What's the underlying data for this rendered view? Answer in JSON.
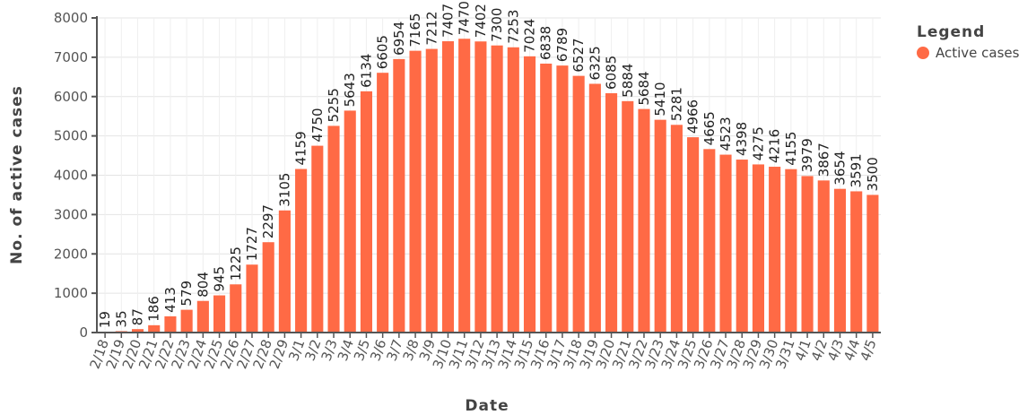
{
  "chart_data": {
    "type": "bar",
    "xlabel": "Date",
    "ylabel": "No. of active cases",
    "ylim": [
      0,
      8000
    ],
    "yticks": [
      0,
      1000,
      2000,
      3000,
      4000,
      5000,
      6000,
      7000,
      8000
    ],
    "grid": true,
    "legend_position": "top-right",
    "legend_title": "Legend",
    "categories": [
      "2/18",
      "2/19",
      "2/20",
      "2/21",
      "2/22",
      "2/23",
      "2/24",
      "2/25",
      "2/26",
      "2/27",
      "2/28",
      "2/29",
      "3/1",
      "3/2",
      "3/3",
      "3/4",
      "3/5",
      "3/6",
      "3/7",
      "3/8",
      "3/9",
      "3/10",
      "3/11",
      "3/12",
      "3/13",
      "3/14",
      "3/15",
      "3/16",
      "3/17",
      "3/18",
      "3/19",
      "3/20",
      "3/21",
      "3/22",
      "3/23",
      "3/24",
      "3/25",
      "3/26",
      "3/27",
      "3/28",
      "3/29",
      "3/30",
      "3/31",
      "4/1",
      "4/2",
      "4/3",
      "4/4",
      "4/5"
    ],
    "series": [
      {
        "name": "Active cases",
        "color": "#ff6a45",
        "values": [
          19,
          35,
          87,
          186,
          413,
          579,
          804,
          945,
          1225,
          1727,
          2297,
          3105,
          4159,
          4750,
          5255,
          5643,
          6134,
          6605,
          6954,
          7165,
          7212,
          7407,
          7470,
          7402,
          7300,
          7253,
          7024,
          6838,
          6789,
          6527,
          6325,
          6085,
          5884,
          5684,
          5410,
          5281,
          4966,
          4665,
          4523,
          4398,
          4275,
          4216,
          4155,
          3979,
          3867,
          3654,
          3591,
          3500
        ]
      }
    ]
  }
}
